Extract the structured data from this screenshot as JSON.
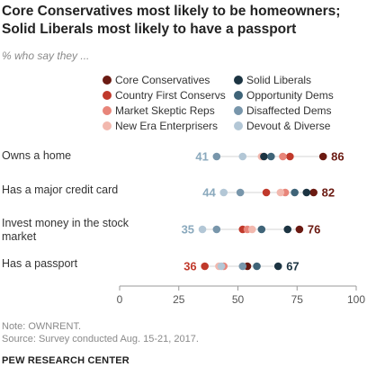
{
  "title": "Core Conservatives most likely to be homeowners; Solid Liberals most likely to have a passport",
  "subtitle": "% who say they ...",
  "note": "Note: OWNRENT.",
  "source": "Source: Survey conducted Aug. 15-21, 2017.",
  "org": "PEW RESEARCH CENTER",
  "colors": {
    "core_conservatives": "#6b1a12",
    "country_first": "#c0392b",
    "market_skeptic": "#e8857a",
    "new_era": "#f2b8ae",
    "solid_liberals": "#1c3442",
    "opportunity_dems": "#3f6478",
    "disaffected_dems": "#7896ab",
    "devout_diverse": "#b3c7d6",
    "low_label": "#8aa9bd",
    "high_label": "#6b1a12",
    "dark_label": "#1c3442",
    "red_label": "#c0392b"
  },
  "chart_data": {
    "type": "scatter",
    "subtype": "dot-plot",
    "xlim": [
      0,
      100
    ],
    "xticks": [
      "0",
      "25",
      "50",
      "75",
      "100"
    ],
    "legend": [
      {
        "key": "core_conservatives",
        "label": "Core Conservatives"
      },
      {
        "key": "country_first",
        "label": "Country First Conservs"
      },
      {
        "key": "market_skeptic",
        "label": "Market Skeptic Reps"
      },
      {
        "key": "new_era",
        "label": "New Era Enterprisers"
      },
      {
        "key": "solid_liberals",
        "label": "Solid Liberals"
      },
      {
        "key": "opportunity_dems",
        "label": "Opportunity Dems"
      },
      {
        "key": "disaffected_dems",
        "label": "Disaffected Dems"
      },
      {
        "key": "devout_diverse",
        "label": "Devout & Diverse"
      }
    ],
    "categories": [
      {
        "label": "Owns a home",
        "values": {
          "core_conservatives": 86,
          "country_first": 72,
          "market_skeptic": 69,
          "new_era": 60,
          "solid_liberals": 61,
          "opportunity_dems": 64,
          "disaffected_dems": 41,
          "devout_diverse": 52
        },
        "low_label": "41",
        "low_value": 41,
        "low_color": "low_label",
        "high_label": "86",
        "high_value": 86,
        "high_color": "high_label"
      },
      {
        "label": "Has a major credit card",
        "values": {
          "core_conservatives": 82,
          "country_first": 62,
          "market_skeptic": 70,
          "new_era": 68,
          "solid_liberals": 79,
          "opportunity_dems": 74,
          "disaffected_dems": 51,
          "devout_diverse": 44
        },
        "low_label": "44",
        "low_value": 44,
        "low_color": "low_label",
        "high_label": "82",
        "high_value": 82,
        "high_color": "high_label"
      },
      {
        "label": "Invest money in the stock market",
        "values": {
          "core_conservatives": 76,
          "country_first": 52,
          "market_skeptic": 54,
          "new_era": 56,
          "solid_liberals": 71,
          "opportunity_dems": 60,
          "disaffected_dems": 41,
          "devout_diverse": 35
        },
        "low_label": "35",
        "low_value": 35,
        "low_color": "low_label",
        "high_label": "76",
        "high_value": 76,
        "high_color": "high_label"
      },
      {
        "label": "Has a passport",
        "values": {
          "core_conservatives": 54,
          "country_first": 36,
          "market_skeptic": 44,
          "new_era": 42,
          "solid_liberals": 67,
          "opportunity_dems": 58,
          "disaffected_dems": 52,
          "devout_diverse": 43
        },
        "low_label": "36",
        "low_value": 36,
        "low_color": "red_label",
        "high_label": "67",
        "high_value": 67,
        "high_color": "dark_label"
      }
    ]
  }
}
